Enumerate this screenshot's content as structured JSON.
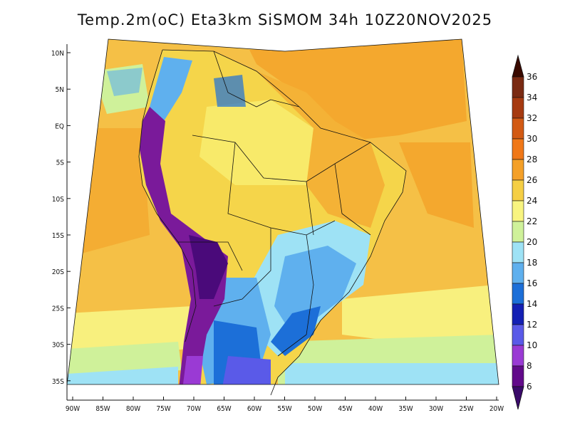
{
  "title": "Temp.2m(oC) Eta3km SiSMOM 34h 10Z20NOV2025",
  "map": {
    "lat_ticks": [
      "10N",
      "5N",
      "EQ",
      "5S",
      "10S",
      "15S",
      "20S",
      "25S",
      "30S",
      "35S"
    ],
    "lon_ticks": [
      "90W",
      "85W",
      "80W",
      "75W",
      "70W",
      "65W",
      "60W",
      "55W",
      "50W",
      "45W",
      "40W",
      "35W",
      "30W",
      "25W",
      "20W"
    ],
    "lat_range": [
      10,
      -35
    ],
    "lon_range": [
      -90,
      -20
    ]
  },
  "colorbar": {
    "labels": [
      "36",
      "34",
      "32",
      "30",
      "28",
      "26",
      "24",
      "22",
      "20",
      "18",
      "16",
      "14",
      "12",
      "10",
      "8",
      "6"
    ],
    "colors": [
      "#3a0a00",
      "#7a2a12",
      "#a63a10",
      "#d25a14",
      "#f07818",
      "#f4a028",
      "#f5cf45",
      "#f8f480",
      "#cff19a",
      "#9ee2f5",
      "#5fb0ee",
      "#1c6fd8",
      "#1420b4",
      "#5a5ae8",
      "#9a3ad4",
      "#620a8a",
      "#3a0a6a"
    ]
  },
  "colors": {
    "ocean_warm": "#f5c046",
    "ocean_hot": "#f4a82e",
    "ocean_mild": "#f8f07e",
    "ocean_cool": "#cff19a",
    "ocean_cold": "#9ee2f5",
    "andes_cold": "#7a1a9a",
    "andes_coldest": "#4a0a7a",
    "highland_blue": "#4f8fe8",
    "border_line": "#111111"
  }
}
